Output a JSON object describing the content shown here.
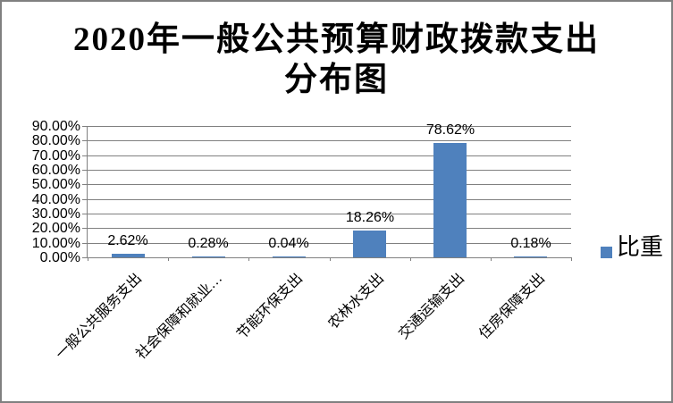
{
  "frame": {
    "background_color": "#FFFFFF",
    "border_color": "#808080"
  },
  "title": {
    "line1": "2020年一般公共预算财政拨款支出",
    "line2": "分布图"
  },
  "legend": {
    "label": "比重",
    "swatch_color": "#4F81BD"
  },
  "chart_data": {
    "type": "bar",
    "title": "2020年一般公共预算财政拨款支出分布图",
    "categories": [
      "一般公共服务支出",
      "社会保障和就业…",
      "节能环保支出",
      "农林水支出",
      "交通运输支出",
      "住房保障支出"
    ],
    "series": [
      {
        "name": "比重",
        "values": [
          2.62,
          0.28,
          0.04,
          18.26,
          78.62,
          0.18
        ]
      }
    ],
    "data_labels": [
      "2.62%",
      "0.28%",
      "0.04%",
      "18.26%",
      "78.62%",
      "0.18%"
    ],
    "y_tick_labels": [
      "90.00%",
      "80.00%",
      "70.00%",
      "60.00%",
      "50.00%",
      "40.00%",
      "30.00%",
      "20.00%",
      "10.00%",
      "0.00%"
    ],
    "ylim": [
      0,
      90
    ],
    "xlabel": "",
    "ylabel": "",
    "grid": true,
    "legend_position": "right",
    "bar_color": "#4F81BD",
    "gridline_color": "#808080",
    "data_label_position": "outside-end",
    "category_label_rotation_deg": -45
  }
}
